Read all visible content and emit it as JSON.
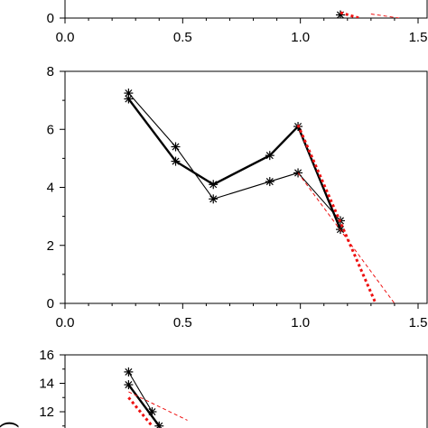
{
  "chart_data": [
    {
      "type": "line",
      "panel": "top",
      "xlim": [
        0.0,
        1.5
      ],
      "x_ticks": [
        "0.0",
        "0.5",
        "1.0",
        "1.5"
      ],
      "y_ticks": [
        "0"
      ],
      "series": [
        {
          "style": "black-thin-markers",
          "x": [
            1.17
          ],
          "y": [
            0.7
          ]
        },
        {
          "style": "red-dotted-thick",
          "x": [
            1.17,
            1.25
          ],
          "y": [
            1.2,
            0.0
          ]
        },
        {
          "style": "red-dashed-thin",
          "x": [
            1.3,
            1.42
          ],
          "y": [
            0.9,
            0.0
          ]
        }
      ]
    },
    {
      "type": "line",
      "panel": "middle",
      "xlim": [
        0.0,
        1.5
      ],
      "ylim": [
        0,
        8
      ],
      "x_ticks": [
        "0.0",
        "0.5",
        "1.0",
        "1.5"
      ],
      "y_ticks": [
        "0",
        "2",
        "4",
        "6",
        "8"
      ],
      "series": [
        {
          "style": "black-thick-markers",
          "x": [
            0.27,
            0.47,
            0.63,
            0.87,
            0.99,
            1.17
          ],
          "y": [
            7.05,
            4.9,
            4.1,
            5.1,
            6.1,
            2.55
          ]
        },
        {
          "style": "black-thin-markers",
          "x": [
            0.27,
            0.47,
            0.63,
            0.87,
            0.99,
            1.17
          ],
          "y": [
            7.25,
            5.4,
            3.6,
            4.2,
            4.5,
            2.85
          ]
        },
        {
          "style": "red-dotted-thick",
          "x": [
            0.99,
            1.32
          ],
          "y": [
            6.15,
            0.0
          ]
        },
        {
          "style": "red-dashed-thin",
          "x": [
            0.99,
            1.4
          ],
          "y": [
            4.5,
            0.0
          ]
        }
      ]
    },
    {
      "type": "line",
      "panel": "bottom",
      "xlim": [
        0.0,
        1.5
      ],
      "ylim_visible": [
        11,
        16
      ],
      "y_ticks": [
        "16",
        "14",
        "12"
      ],
      "series": [
        {
          "style": "black-thin-markers",
          "x": [
            0.27,
            0.37
          ],
          "y": [
            14.8,
            12.0
          ]
        },
        {
          "style": "black-thick-markers",
          "x": [
            0.27,
            0.4
          ],
          "y": [
            13.9,
            11.0
          ]
        },
        {
          "style": "red-dotted-thick",
          "x": [
            0.27,
            0.37
          ],
          "y": [
            13.0,
            11.0
          ]
        },
        {
          "style": "red-dashed-thin",
          "x": [
            0.27,
            0.52
          ],
          "y": [
            13.4,
            11.4
          ]
        }
      ]
    }
  ]
}
